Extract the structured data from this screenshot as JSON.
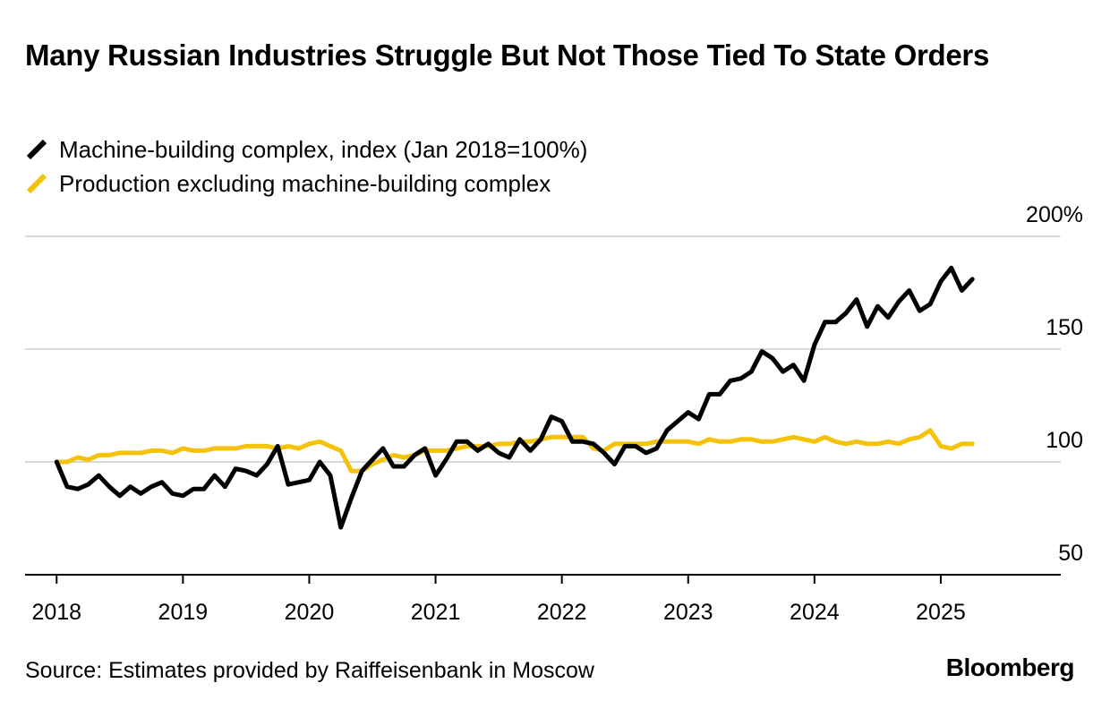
{
  "title": "Many Russian Industries Struggle But Not Those Tied To State Orders",
  "source": "Source: Estimates provided by Raiffeisenbank in Moscow",
  "brand": "Bloomberg",
  "colors": {
    "machine": "#000000",
    "production": "#f5c20a",
    "grid": "#d9d9d9",
    "axis": "#000000"
  },
  "chart_data": {
    "type": "line",
    "xlabel": "",
    "ylabel": "",
    "xlim": [
      2017.75,
      2025.95
    ],
    "ylim": [
      50,
      200
    ],
    "yticks": [
      {
        "value": 200,
        "label": "200%"
      },
      {
        "value": 150,
        "label": "150"
      },
      {
        "value": 100,
        "label": "100"
      },
      {
        "value": 50,
        "label": "50"
      }
    ],
    "xticks": [
      {
        "value": 2018,
        "label": "2018"
      },
      {
        "value": 2019,
        "label": "2019"
      },
      {
        "value": 2020,
        "label": "2020"
      },
      {
        "value": 2021,
        "label": "2021"
      },
      {
        "value": 2022,
        "label": "2022"
      },
      {
        "value": 2023,
        "label": "2023"
      },
      {
        "value": 2024,
        "label": "2024"
      },
      {
        "value": 2025,
        "label": "2025"
      }
    ],
    "grid": true,
    "legend_position": "top-left",
    "x_start": "2018-01",
    "x_step": "monthly",
    "series": [
      {
        "name": "Machine-building complex, index (Jan 2018=100%)",
        "color": "#000000",
        "values": [
          100,
          89,
          88,
          90,
          94,
          89,
          85,
          89,
          86,
          89,
          91,
          86,
          85,
          88,
          88,
          94,
          89,
          97,
          96,
          94,
          99,
          107,
          90,
          91,
          92,
          100,
          94,
          71,
          84,
          96,
          101,
          106,
          98,
          98,
          103,
          106,
          94,
          101,
          109,
          109,
          105,
          108,
          104,
          102,
          110,
          105,
          110,
          120,
          118,
          109,
          109,
          108,
          104,
          99,
          107,
          107,
          104,
          106,
          114,
          118,
          122,
          119,
          130,
          130,
          136,
          137,
          140,
          149,
          146,
          140,
          143,
          136,
          152,
          162,
          162,
          166,
          172,
          160,
          169,
          164,
          171,
          176,
          167,
          170,
          180,
          186,
          176,
          181
        ]
      },
      {
        "name": "Production excluding machine-building complex",
        "color": "#f5c20a",
        "values": [
          100,
          100,
          102,
          101,
          103,
          103,
          104,
          104,
          104,
          105,
          105,
          104,
          106,
          105,
          105,
          106,
          106,
          106,
          107,
          107,
          107,
          106,
          107,
          106,
          108,
          109,
          107,
          105,
          96,
          96,
          99,
          101,
          103,
          102,
          103,
          105,
          105,
          105,
          106,
          107,
          107,
          107,
          108,
          108,
          109,
          109,
          110,
          111,
          111,
          111,
          111,
          106,
          105,
          108,
          108,
          108,
          108,
          109,
          109,
          109,
          109,
          108,
          110,
          109,
          109,
          110,
          110,
          109,
          109,
          110,
          111,
          110,
          109,
          111,
          109,
          108,
          109,
          108,
          108,
          109,
          108,
          110,
          111,
          114,
          107,
          106,
          108,
          108
        ]
      }
    ]
  }
}
